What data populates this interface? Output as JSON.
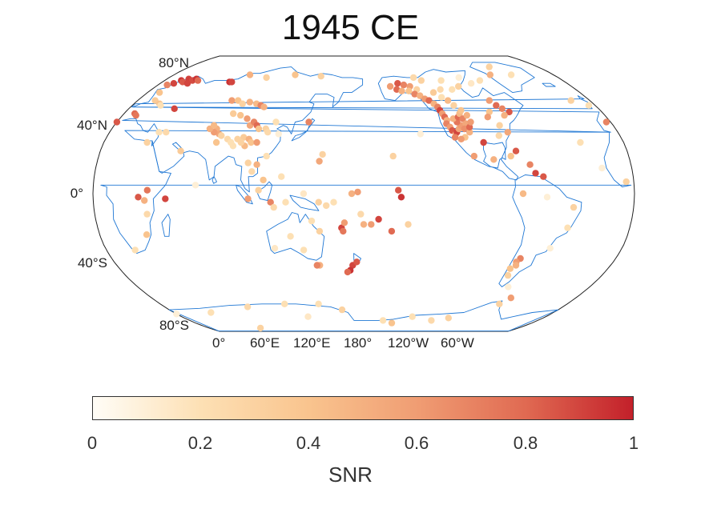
{
  "title": "1945 CE",
  "map": {
    "projection": "Robinson",
    "central_longitude": 180,
    "lat_ticks": [
      "80°N",
      "40°N",
      "0°",
      "40°S",
      "80°S"
    ],
    "lon_ticks": [
      "0°",
      "60°E",
      "120°E",
      "180°",
      "120°W",
      "60°W"
    ],
    "coastline_color": "#1f77d4"
  },
  "colorbar": {
    "label": "SNR",
    "ticks": [
      "0",
      "0.2",
      "0.4",
      "0.6",
      "0.8",
      "1"
    ],
    "colors": [
      "#fffdf7",
      "#fde0b4",
      "#f9c48e",
      "#f09d73",
      "#e06a52",
      "#c3202a"
    ]
  },
  "chart_data": {
    "type": "scatter",
    "value_name": "SNR",
    "range": [
      0,
      1
    ],
    "points": [
      {
        "lon": 12,
        "lat": 66,
        "v": 0.9
      },
      {
        "lon": 15,
        "lat": 68,
        "v": 0.95
      },
      {
        "lon": 18,
        "lat": 67,
        "v": 0.85
      },
      {
        "lon": 20,
        "lat": 69,
        "v": 0.9
      },
      {
        "lon": 22,
        "lat": 68,
        "v": 0.92
      },
      {
        "lon": 25,
        "lat": 68,
        "v": 0.88
      },
      {
        "lon": 27,
        "lat": 69,
        "v": 0.95
      },
      {
        "lon": 30,
        "lat": 68,
        "v": 0.8
      },
      {
        "lon": 8,
        "lat": 65,
        "v": 0.7
      },
      {
        "lon": 24,
        "lat": 66,
        "v": 0.9
      },
      {
        "lon": 60,
        "lat": 67,
        "v": 0.95
      },
      {
        "lon": 62,
        "lat": 67,
        "v": 0.9
      },
      {
        "lon": 72,
        "lat": 72,
        "v": 0.5
      },
      {
        "lon": 90,
        "lat": 70,
        "v": 0.3
      },
      {
        "lon": 115,
        "lat": 72,
        "v": 0.4
      },
      {
        "lon": 140,
        "lat": 71,
        "v": 0.3
      },
      {
        "lon": 8,
        "lat": 47,
        "v": 0.8
      },
      {
        "lon": 10,
        "lat": 46,
        "v": 0.75
      },
      {
        "lon": 14,
        "lat": 55,
        "v": 0.35
      },
      {
        "lon": 20,
        "lat": 53,
        "v": 0.4
      },
      {
        "lon": 22,
        "lat": 52,
        "v": 0.2
      },
      {
        "lon": 35,
        "lat": 50,
        "v": 0.9
      },
      {
        "lon": 0,
        "lat": 42,
        "v": 0.85
      },
      {
        "lon": -3,
        "lat": 42,
        "v": 0.7
      },
      {
        "lon": 40,
        "lat": 36,
        "v": 0.25
      },
      {
        "lon": 75,
        "lat": 55,
        "v": 0.6
      },
      {
        "lon": 80,
        "lat": 55,
        "v": 0.4
      },
      {
        "lon": 85,
        "lat": 53,
        "v": 0.3
      },
      {
        "lon": 90,
        "lat": 54,
        "v": 0.5
      },
      {
        "lon": 96,
        "lat": 53,
        "v": 0.45
      },
      {
        "lon": 100,
        "lat": 52,
        "v": 0.7
      },
      {
        "lon": 103,
        "lat": 51,
        "v": 0.5
      },
      {
        "lon": 82,
        "lat": 47,
        "v": 0.35
      },
      {
        "lon": 88,
        "lat": 46,
        "v": 0.4
      },
      {
        "lon": 94,
        "lat": 44,
        "v": 0.6
      },
      {
        "lon": 98,
        "lat": 40,
        "v": 0.55
      },
      {
        "lon": 100,
        "lat": 42,
        "v": 0.7
      },
      {
        "lon": 103,
        "lat": 40,
        "v": 0.8
      },
      {
        "lon": 105,
        "lat": 38,
        "v": 0.4
      },
      {
        "lon": 110,
        "lat": 38,
        "v": 0.3
      },
      {
        "lon": 112,
        "lat": 36,
        "v": 0.25
      },
      {
        "lon": 75,
        "lat": 38,
        "v": 0.5
      },
      {
        "lon": 78,
        "lat": 35,
        "v": 0.55
      },
      {
        "lon": 80,
        "lat": 34,
        "v": 0.3
      },
      {
        "lon": 85,
        "lat": 32,
        "v": 0.25
      },
      {
        "lon": 88,
        "lat": 30,
        "v": 0.2
      },
      {
        "lon": 92,
        "lat": 32,
        "v": 0.3
      },
      {
        "lon": 96,
        "lat": 33,
        "v": 0.35
      },
      {
        "lon": 100,
        "lat": 32,
        "v": 0.5
      },
      {
        "lon": 102,
        "lat": 30,
        "v": 0.4
      },
      {
        "lon": 98,
        "lat": 28,
        "v": 0.45
      },
      {
        "lon": 95,
        "lat": 30,
        "v": 0.3
      },
      {
        "lon": 90,
        "lat": 28,
        "v": 0.2
      },
      {
        "lon": 78,
        "lat": 30,
        "v": 0.4
      },
      {
        "lon": 74,
        "lat": 36,
        "v": 0.6
      },
      {
        "lon": 70,
        "lat": 38,
        "v": 0.5
      },
      {
        "lon": 72,
        "lat": 40,
        "v": 0.45
      },
      {
        "lon": 106,
        "lat": 30,
        "v": 0.6
      },
      {
        "lon": 120,
        "lat": 35,
        "v": 0.1
      },
      {
        "lon": 116,
        "lat": 42,
        "v": 0.2
      },
      {
        "lon": 140,
        "lat": 42,
        "v": 0.7
      },
      {
        "lon": 105,
        "lat": 13,
        "v": 0.25
      },
      {
        "lon": 102,
        "lat": 18,
        "v": 0.3
      },
      {
        "lon": 108,
        "lat": 17,
        "v": 0.5
      },
      {
        "lon": 113,
        "lat": 8,
        "v": 0.4
      },
      {
        "lon": 110,
        "lat": 2,
        "v": 0.3
      },
      {
        "lon": 114,
        "lat": 22,
        "v": 0.2
      },
      {
        "lon": 150,
        "lat": 19,
        "v": 0.55
      },
      {
        "lon": 152,
        "lat": 23,
        "v": 0.3
      },
      {
        "lon": 125,
        "lat": 10,
        "v": 0.2
      },
      {
        "lon": 103,
        "lat": -3,
        "v": 0.6
      },
      {
        "lon": 118,
        "lat": -5,
        "v": 0.7
      },
      {
        "lon": 120,
        "lat": -8,
        "v": 0.25
      },
      {
        "lon": 128,
        "lat": -5,
        "v": 0.2
      },
      {
        "lon": 140,
        "lat": 0,
        "v": 0.15
      },
      {
        "lon": 150,
        "lat": -5,
        "v": 0.3
      },
      {
        "lon": 155,
        "lat": -7,
        "v": 0.25
      },
      {
        "lon": 160,
        "lat": -5,
        "v": 0.2
      },
      {
        "lon": 172,
        "lat": 0,
        "v": 0.5
      },
      {
        "lon": 176,
        "lat": 1,
        "v": 0.6
      },
      {
        "lon": 178,
        "lat": -12,
        "v": 0.25
      },
      {
        "lon": 190,
        "lat": -15,
        "v": 0.9
      },
      {
        "lon": 203,
        "lat": 2,
        "v": 0.85
      },
      {
        "lon": 205,
        "lat": -2,
        "v": 0.95
      },
      {
        "lon": 185,
        "lat": -18,
        "v": 0.6
      },
      {
        "lon": 180,
        "lat": -18,
        "v": 0.5
      },
      {
        "lon": 199,
        "lat": -22,
        "v": 0.8
      },
      {
        "lon": 210,
        "lat": -18,
        "v": 0.3
      },
      {
        "lon": 165,
        "lat": -20,
        "v": 0.9
      },
      {
        "lon": 166,
        "lat": -22,
        "v": 0.75
      },
      {
        "lon": 167,
        "lat": -17,
        "v": 0.6
      },
      {
        "lon": 145,
        "lat": -16,
        "v": 0.2
      },
      {
        "lon": 150,
        "lat": -22,
        "v": 0.3
      },
      {
        "lon": 148,
        "lat": -42,
        "v": 0.5
      },
      {
        "lon": 146,
        "lat": -42,
        "v": 0.7
      },
      {
        "lon": 172,
        "lat": -42,
        "v": 0.9
      },
      {
        "lon": 170,
        "lat": -45,
        "v": 0.95
      },
      {
        "lon": 168,
        "lat": -46,
        "v": 0.8
      },
      {
        "lon": 175,
        "lat": -40,
        "v": 0.85
      },
      {
        "lon": 130,
        "lat": -25,
        "v": 0.2
      },
      {
        "lon": 118,
        "lat": -32,
        "v": 0.15
      },
      {
        "lon": 138,
        "lat": -33,
        "v": 0.2
      },
      {
        "lon": 30,
        "lat": -2,
        "v": 0.85
      },
      {
        "lon": 34,
        "lat": -4,
        "v": 0.5
      },
      {
        "lon": 36,
        "lat": 2,
        "v": 0.75
      },
      {
        "lon": 48,
        "lat": -3,
        "v": 0.9
      },
      {
        "lon": 35,
        "lat": -12,
        "v": 0.25
      },
      {
        "lon": 32,
        "lat": -24,
        "v": 0.4
      },
      {
        "lon": 20,
        "lat": -33,
        "v": 0.2
      },
      {
        "lon": 30,
        "lat": 30,
        "v": 0.3
      },
      {
        "lon": 35,
        "lat": 36,
        "v": 0.2
      },
      {
        "lon": 55,
        "lat": 25,
        "v": 0.35
      },
      {
        "lon": 68,
        "lat": 5,
        "v": 0.1
      },
      {
        "lon": 10,
        "lat": 60,
        "v": 0.4
      },
      {
        "lon": 203,
        "lat": 64,
        "v": 0.6
      },
      {
        "lon": 210,
        "lat": 66,
        "v": 0.85
      },
      {
        "lon": 215,
        "lat": 65,
        "v": 0.7
      },
      {
        "lon": 220,
        "lat": 64,
        "v": 0.6
      },
      {
        "lon": 208,
        "lat": 62,
        "v": 0.8
      },
      {
        "lon": 212,
        "lat": 61,
        "v": 0.5
      },
      {
        "lon": 218,
        "lat": 61,
        "v": 0.4
      },
      {
        "lon": 225,
        "lat": 62,
        "v": 0.3
      },
      {
        "lon": 222,
        "lat": 59,
        "v": 0.7
      },
      {
        "lon": 226,
        "lat": 58,
        "v": 0.5
      },
      {
        "lon": 229,
        "lat": 56,
        "v": 0.6
      },
      {
        "lon": 232,
        "lat": 55,
        "v": 0.8
      },
      {
        "lon": 235,
        "lat": 53,
        "v": 0.5
      },
      {
        "lon": 237,
        "lat": 51,
        "v": 0.7
      },
      {
        "lon": 238,
        "lat": 49,
        "v": 0.9
      },
      {
        "lon": 239,
        "lat": 47,
        "v": 0.6
      },
      {
        "lon": 240,
        "lat": 45,
        "v": 0.8
      },
      {
        "lon": 241,
        "lat": 43,
        "v": 0.5
      },
      {
        "lon": 240,
        "lat": 41,
        "v": 0.7
      },
      {
        "lon": 242,
        "lat": 39,
        "v": 0.6
      },
      {
        "lon": 243,
        "lat": 37,
        "v": 0.85
      },
      {
        "lon": 245,
        "lat": 35,
        "v": 0.4
      },
      {
        "lon": 246,
        "lat": 36,
        "v": 0.9
      },
      {
        "lon": 248,
        "lat": 38,
        "v": 0.55
      },
      {
        "lon": 250,
        "lat": 40,
        "v": 0.6
      },
      {
        "lon": 248,
        "lat": 42,
        "v": 0.75
      },
      {
        "lon": 246,
        "lat": 44,
        "v": 0.5
      },
      {
        "lon": 250,
        "lat": 45,
        "v": 0.8
      },
      {
        "lon": 252,
        "lat": 47,
        "v": 0.45
      },
      {
        "lon": 253,
        "lat": 44,
        "v": 0.7
      },
      {
        "lon": 254,
        "lat": 41,
        "v": 0.55
      },
      {
        "lon": 252,
        "lat": 38,
        "v": 0.65
      },
      {
        "lon": 255,
        "lat": 36,
        "v": 0.5
      },
      {
        "lon": 251,
        "lat": 33,
        "v": 0.4
      },
      {
        "lon": 248,
        "lat": 32,
        "v": 0.6
      },
      {
        "lon": 244,
        "lat": 33,
        "v": 0.7
      },
      {
        "lon": 256,
        "lat": 39,
        "v": 0.8
      },
      {
        "lon": 258,
        "lat": 42,
        "v": 0.6
      },
      {
        "lon": 257,
        "lat": 46,
        "v": 0.5
      },
      {
        "lon": 254,
        "lat": 49,
        "v": 0.4
      },
      {
        "lon": 250,
        "lat": 52,
        "v": 0.3
      },
      {
        "lon": 247,
        "lat": 55,
        "v": 0.45
      },
      {
        "lon": 243,
        "lat": 57,
        "v": 0.2
      },
      {
        "lon": 238,
        "lat": 60,
        "v": 0.35
      },
      {
        "lon": 245,
        "lat": 62,
        "v": 0.25
      },
      {
        "lon": 255,
        "lat": 62,
        "v": 0.2
      },
      {
        "lon": 262,
        "lat": 64,
        "v": 0.3
      },
      {
        "lon": 275,
        "lat": 66,
        "v": 0.15
      },
      {
        "lon": 285,
        "lat": 68,
        "v": 0.2
      },
      {
        "lon": 268,
        "lat": 70,
        "v": 0.1
      },
      {
        "lon": 250,
        "lat": 68,
        "v": 0.2
      },
      {
        "lon": 232,
        "lat": 68,
        "v": 0.3
      },
      {
        "lon": 226,
        "lat": 70,
        "v": 0.25
      },
      {
        "lon": 300,
        "lat": 72,
        "v": 0.5
      },
      {
        "lon": 320,
        "lat": 72,
        "v": 0.2
      },
      {
        "lon": 310,
        "lat": 78,
        "v": 0.3
      },
      {
        "lon": 280,
        "lat": 55,
        "v": 0.6
      },
      {
        "lon": 283,
        "lat": 52,
        "v": 0.8
      },
      {
        "lon": 286,
        "lat": 50,
        "v": 0.7
      },
      {
        "lon": 290,
        "lat": 48,
        "v": 0.85
      },
      {
        "lon": 285,
        "lat": 46,
        "v": 0.5
      },
      {
        "lon": 275,
        "lat": 48,
        "v": 0.4
      },
      {
        "lon": 272,
        "lat": 45,
        "v": 0.6
      },
      {
        "lon": 278,
        "lat": 40,
        "v": 0.3
      },
      {
        "lon": 282,
        "lat": 36,
        "v": 0.55
      },
      {
        "lon": 263,
        "lat": 30,
        "v": 0.9
      },
      {
        "lon": 275,
        "lat": 34,
        "v": 0.25
      },
      {
        "lon": 284,
        "lat": 25,
        "v": 0.85
      },
      {
        "lon": 280,
        "lat": 22,
        "v": 0.4
      },
      {
        "lon": 268,
        "lat": 20,
        "v": 0.5
      },
      {
        "lon": 255,
        "lat": 22,
        "v": 0.6
      },
      {
        "lon": 292,
        "lat": 17,
        "v": 0.7
      },
      {
        "lon": 295,
        "lat": 12,
        "v": 0.9
      },
      {
        "lon": 300,
        "lat": 10,
        "v": 0.85
      },
      {
        "lon": 286,
        "lat": 0,
        "v": 0.45
      },
      {
        "lon": 302,
        "lat": -2,
        "v": 0.1
      },
      {
        "lon": 320,
        "lat": -8,
        "v": 0.3
      },
      {
        "lon": 318,
        "lat": -20,
        "v": 0.2
      },
      {
        "lon": 310,
        "lat": -32,
        "v": 0.1
      },
      {
        "lon": 292,
        "lat": -38,
        "v": 0.7
      },
      {
        "lon": 290,
        "lat": -40,
        "v": 0.6
      },
      {
        "lon": 288,
        "lat": -44,
        "v": 0.4
      },
      {
        "lon": 289,
        "lat": -48,
        "v": 0.3
      },
      {
        "lon": 291,
        "lat": -42,
        "v": 0.5
      },
      {
        "lon": 295,
        "lat": -55,
        "v": 0.1
      },
      {
        "lon": 305,
        "lat": -62,
        "v": 0.6
      },
      {
        "lon": 300,
        "lat": -66,
        "v": 0.3
      },
      {
        "lon": 75,
        "lat": -68,
        "v": 0.25
      },
      {
        "lon": 110,
        "lat": -66,
        "v": 0.2
      },
      {
        "lon": 125,
        "lat": -75,
        "v": 0.15
      },
      {
        "lon": 160,
        "lat": -70,
        "v": 0.3
      },
      {
        "lon": 200,
        "lat": -78,
        "v": 0.2
      },
      {
        "lon": 210,
        "lat": -80,
        "v": 0.4
      },
      {
        "lon": 250,
        "lat": -78,
        "v": 0.25
      },
      {
        "lon": 35,
        "lat": -72,
        "v": 0.2
      },
      {
        "lon": 60,
        "lat": -85,
        "v": 0.3
      },
      {
        "lon": 0,
        "lat": -73,
        "v": 0.1
      },
      {
        "lon": 140,
        "lat": -66,
        "v": 0.2
      },
      {
        "lon": 265,
        "lat": -76,
        "v": 0.3
      },
      {
        "lon": 228,
        "lat": -75,
        "v": 0.2
      },
      {
        "lon": 355,
        "lat": 7,
        "v": 0.3
      },
      {
        "lon": 340,
        "lat": 15,
        "v": 0.1
      },
      {
        "lon": 330,
        "lat": 30,
        "v": 0.2
      },
      {
        "lon": 345,
        "lat": 55,
        "v": 0.3
      },
      {
        "lon": 355,
        "lat": 52,
        "v": 0.2
      },
      {
        "lon": 200,
        "lat": 22,
        "v": 0.3
      },
      {
        "lon": 220,
        "lat": 35,
        "v": 0.1
      }
    ]
  }
}
